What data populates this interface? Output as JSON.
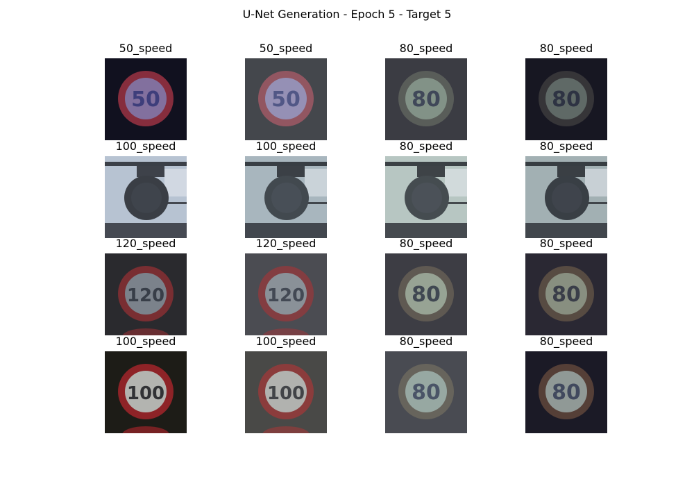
{
  "title": "U-Net Generation - Epoch 5 - Target 5",
  "grid": {
    "rows": [
      {
        "cells": [
          {
            "label": "50_speed",
            "sign": "50",
            "style": {
              "bg": "#12121f",
              "ring": "#b03848",
              "inner": "#9a8fc8",
              "text": "#3a3f88",
              "dim": 0.9
            }
          },
          {
            "label": "50_speed",
            "sign": "50",
            "style": {
              "bg": "#45474c",
              "ring": "#a45a66",
              "inner": "#a8a0cc",
              "text": "#47508a",
              "dim": 1.0
            }
          },
          {
            "label": "80_speed",
            "sign": "80",
            "style": {
              "bg": "#3b3c44",
              "ring": "#6a6f66",
              "inner": "#9fb5a4",
              "text": "#343c55",
              "dim": 0.8
            }
          },
          {
            "label": "80_speed",
            "sign": "80",
            "style": {
              "bg": "#181823",
              "ring": "#4a4848",
              "inner": "#82928a",
              "text": "#2a2f44",
              "dim": 0.75
            }
          }
        ]
      },
      {
        "cells": [
          {
            "label": "100_speed",
            "sign": "",
            "style": {
              "bg": "#b8c4d2",
              "ring": "#1f2226",
              "inner": "#2a2e35",
              "text": "#1d2025",
              "dim": 1.0,
              "scene": "street"
            }
          },
          {
            "label": "100_speed",
            "sign": "",
            "style": {
              "bg": "#a9b6bf",
              "ring": "#2c3137",
              "inner": "#3a4048",
              "text": "#2a2e35",
              "dim": 1.0,
              "scene": "street"
            }
          },
          {
            "label": "80_speed",
            "sign": "",
            "style": {
              "bg": "#b7c6c2",
              "ring": "#2d3138",
              "inner": "#393e48",
              "text": "#2b2f37",
              "dim": 1.0,
              "scene": "street"
            }
          },
          {
            "label": "80_speed",
            "sign": "",
            "style": {
              "bg": "#a3b0b4",
              "ring": "#23262e",
              "inner": "#2e323c",
              "text": "#23262e",
              "dim": 1.0,
              "scene": "street"
            }
          }
        ]
      },
      {
        "cells": [
          {
            "label": "120_speed",
            "sign": "120",
            "style": {
              "bg": "#2a2a2f",
              "ring": "#8a2f34",
              "inner": "#8d95a0",
              "text": "#2d3442",
              "dim": 1.0,
              "post": true
            }
          },
          {
            "label": "120_speed",
            "sign": "120",
            "style": {
              "bg": "#4b4c52",
              "ring": "#8f3a3e",
              "inner": "#98a0a8",
              "text": "#333a47",
              "dim": 1.0,
              "post": true
            }
          },
          {
            "label": "80_speed",
            "sign": "80",
            "style": {
              "bg": "#3d3e45",
              "ring": "#6c6458",
              "inner": "#b3c4b0",
              "text": "#2f3848",
              "dim": 0.9
            }
          },
          {
            "label": "80_speed",
            "sign": "80",
            "style": {
              "bg": "#2a2934",
              "ring": "#6b5a4a",
              "inner": "#a8b6a0",
              "text": "#2d3344",
              "dim": 0.85
            }
          }
        ]
      },
      {
        "cells": [
          {
            "label": "100_speed",
            "sign": "100",
            "style": {
              "bg": "#1e1d18",
              "ring": "#a8252b",
              "inner": "#d5d6d2",
              "text": "#1b1d22",
              "dim": 1.0,
              "post": true
            }
          },
          {
            "label": "100_speed",
            "sign": "100",
            "style": {
              "bg": "#4a4a47",
              "ring": "#9a3a3a",
              "inner": "#c8cac6",
              "text": "#2a2d33",
              "dim": 1.0,
              "post": true
            }
          },
          {
            "label": "80_speed",
            "sign": "80",
            "style": {
              "bg": "#4a4b52",
              "ring": "#6e6a5e",
              "inner": "#a9bcb4",
              "text": "#3b4560",
              "dim": 1.0
            }
          },
          {
            "label": "80_speed",
            "sign": "80",
            "style": {
              "bg": "#1c1a26",
              "ring": "#6a4c3e",
              "inner": "#b3c1bc",
              "text": "#3a4460",
              "dim": 0.9
            }
          }
        ]
      }
    ]
  }
}
